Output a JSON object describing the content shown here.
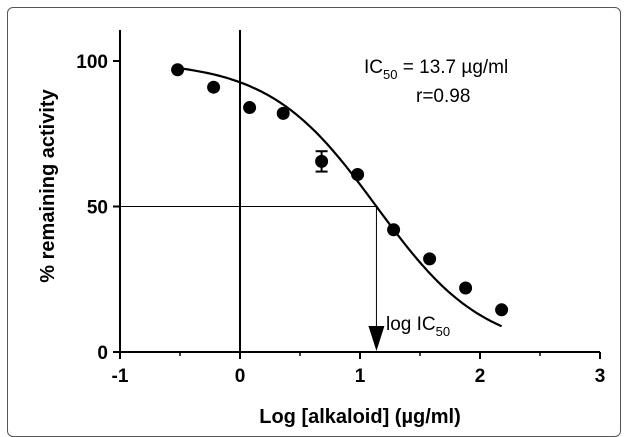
{
  "chart_data": {
    "type": "scatter",
    "xlabel": "Log [alkaloid] (µg/ml)",
    "ylabel": "% remaining activity",
    "xlim": [
      -1,
      3
    ],
    "ylim": [
      0,
      110
    ],
    "x_ticks": [
      "-1",
      "0",
      "1",
      "2",
      "3"
    ],
    "y_ticks": [
      "0",
      "50",
      "100"
    ],
    "grid": false,
    "series": [
      {
        "marker": "filled-circle",
        "points": [
          {
            "x": -0.52,
            "y": 97
          },
          {
            "x": -0.22,
            "y": 91
          },
          {
            "x": 0.08,
            "y": 84
          },
          {
            "x": 0.36,
            "y": 82
          },
          {
            "x": 0.68,
            "y": 65.5,
            "error": 3.5
          },
          {
            "x": 0.98,
            "y": 61
          },
          {
            "x": 1.28,
            "y": 42
          },
          {
            "x": 1.58,
            "y": 32
          },
          {
            "x": 1.88,
            "y": 22
          },
          {
            "x": 2.18,
            "y": 14.5
          }
        ]
      }
    ],
    "fit_curve": {
      "type": "sigmoid",
      "top": 100,
      "bottom": 0,
      "log_ic50": 1.137,
      "hill_slope": 0.97,
      "x_range": [
        -0.52,
        2.18
      ]
    },
    "reference_lines": {
      "y": 50,
      "x": 1.137
    },
    "annotations": {
      "ic50_text": "IC",
      "ic50_sub": "50",
      "ic50_value": " = 13.7 µg/ml",
      "r_value": "r=0.98",
      "arrow_label": "log IC",
      "arrow_label_sub": "50"
    }
  }
}
